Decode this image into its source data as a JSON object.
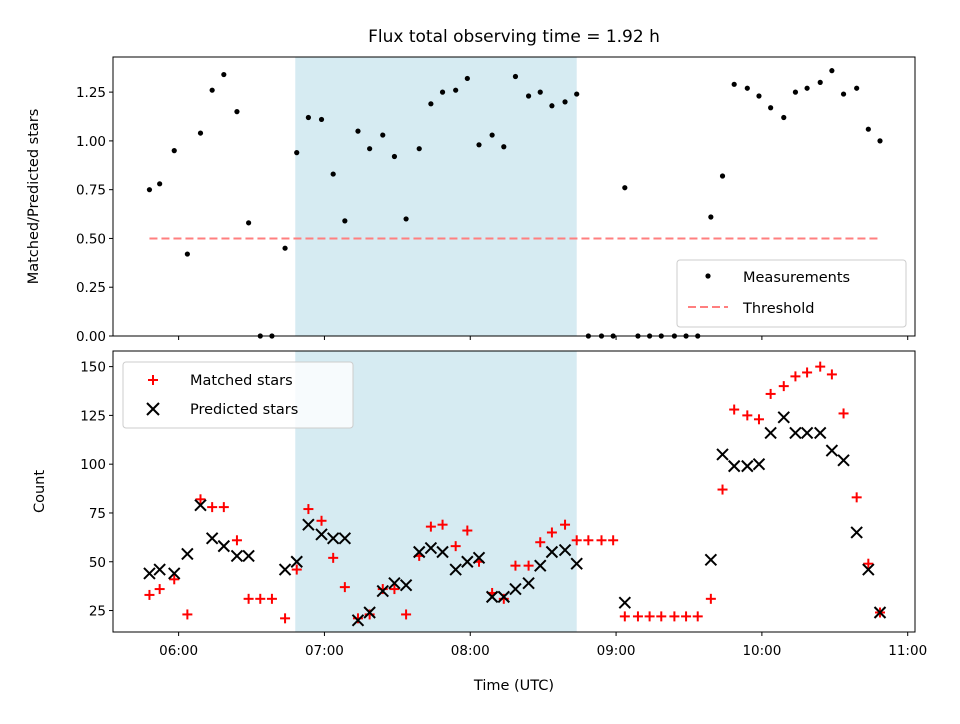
{
  "title": "Flux total observing time = 1.92 h",
  "top": {
    "ylabel": "Matched/Predicted stars",
    "ylim": [
      0,
      1.43
    ],
    "yticks": [
      "0.00",
      "0.25",
      "0.50",
      "0.75",
      "1.00",
      "1.25"
    ],
    "legend": {
      "measurements": "Measurements",
      "threshold": "Threshold"
    }
  },
  "bottom": {
    "ylabel": "Count",
    "xlabel": "Time (UTC)",
    "ylim": [
      14,
      158
    ],
    "yticks": [
      "25",
      "50",
      "75",
      "100",
      "125",
      "150"
    ],
    "legend": {
      "matched": "Matched stars",
      "predicted": "Predicted stars"
    }
  },
  "xticks": [
    "06:00",
    "07:00",
    "08:00",
    "09:00",
    "10:00",
    "11:00"
  ],
  "colors": {
    "shade": "#add8e6",
    "threshold": "#ff7f7f",
    "matched": "#ff0000",
    "predicted": "#000000",
    "measurements": "#000000"
  },
  "chart_data": [
    {
      "type": "scatter",
      "panel": "top",
      "x_unit": "hours UTC",
      "xlim": [
        5.55,
        11.05
      ],
      "shaded_interval": [
        6.8,
        8.73
      ],
      "threshold": {
        "value": 0.5,
        "x_range": [
          5.8,
          10.8
        ]
      },
      "series": [
        {
          "name": "Measurements",
          "x": [
            5.8,
            5.87,
            5.97,
            6.06,
            6.15,
            6.23,
            6.31,
            6.4,
            6.48,
            6.56,
            6.64,
            6.73,
            6.81,
            6.89,
            6.98,
            7.06,
            7.14,
            7.23,
            7.31,
            7.4,
            7.48,
            7.56,
            7.65,
            7.73,
            7.81,
            7.9,
            7.98,
            8.06,
            8.15,
            8.23,
            8.31,
            8.4,
            8.48,
            8.56,
            8.65,
            8.73,
            8.81,
            8.9,
            8.98,
            9.06,
            9.15,
            9.23,
            9.31,
            9.4,
            9.48,
            9.56,
            9.65,
            9.73,
            9.81,
            9.9,
            9.98,
            10.06,
            10.15,
            10.23,
            10.31,
            10.4,
            10.48,
            10.56,
            10.65,
            10.73,
            10.81
          ],
          "y": [
            0.75,
            0.78,
            0.95,
            0.42,
            1.04,
            1.26,
            1.34,
            1.15,
            0.58,
            0.0,
            0.0,
            0.45,
            0.94,
            1.12,
            1.11,
            0.83,
            0.59,
            1.05,
            0.96,
            1.03,
            0.92,
            0.6,
            0.96,
            1.19,
            1.25,
            1.26,
            1.32,
            0.98,
            1.03,
            0.97,
            1.33,
            1.23,
            1.25,
            1.18,
            1.2,
            1.24,
            0.0,
            0.0,
            0.0,
            0.76,
            0.0,
            0.0,
            0.0,
            0.0,
            0.0,
            0.0,
            0.61,
            0.82,
            1.29,
            1.27,
            1.23,
            1.17,
            1.12,
            1.25,
            1.27,
            1.3,
            1.36,
            1.24,
            1.27,
            1.06,
            1.0
          ]
        }
      ]
    },
    {
      "type": "scatter",
      "panel": "bottom",
      "x_unit": "hours UTC",
      "xlim": [
        5.55,
        11.05
      ],
      "shaded_interval": [
        6.8,
        8.73
      ],
      "series": [
        {
          "name": "Matched stars",
          "x": [
            5.8,
            5.87,
            5.97,
            6.06,
            6.15,
            6.23,
            6.31,
            6.4,
            6.48,
            6.56,
            6.64,
            6.73,
            6.81,
            6.89,
            6.98,
            7.06,
            7.14,
            7.23,
            7.31,
            7.4,
            7.48,
            7.56,
            7.65,
            7.73,
            7.81,
            7.9,
            7.98,
            8.06,
            8.15,
            8.23,
            8.31,
            8.4,
            8.48,
            8.56,
            8.65,
            8.73,
            8.81,
            8.9,
            8.98,
            9.06,
            9.15,
            9.23,
            9.31,
            9.4,
            9.48,
            9.56,
            9.65,
            9.73,
            9.81,
            9.9,
            9.98,
            10.06,
            10.15,
            10.23,
            10.31,
            10.4,
            10.48,
            10.56,
            10.65,
            10.73,
            10.81
          ],
          "y": [
            33,
            36,
            41,
            23,
            82,
            78,
            78,
            61,
            31,
            31,
            31,
            21,
            46,
            77,
            71,
            52,
            37,
            21,
            23,
            36,
            36,
            23,
            53,
            68,
            69,
            58,
            66,
            50,
            34,
            31,
            48,
            48,
            60,
            65,
            69,
            61,
            61,
            61,
            61,
            22,
            22,
            22,
            22,
            22,
            22,
            22,
            31,
            87,
            128,
            125,
            123,
            136,
            140,
            145,
            147,
            150,
            146,
            126,
            83,
            49,
            24
          ]
        },
        {
          "name": "Predicted stars",
          "x": [
            5.8,
            5.87,
            5.97,
            6.06,
            6.15,
            6.23,
            6.31,
            6.4,
            6.48,
            6.73,
            6.81,
            6.89,
            6.98,
            7.06,
            7.14,
            7.23,
            7.31,
            7.4,
            7.48,
            7.56,
            7.65,
            7.73,
            7.81,
            7.9,
            7.98,
            8.06,
            8.15,
            8.23,
            8.31,
            8.4,
            8.48,
            8.56,
            8.65,
            8.73,
            9.06,
            9.65,
            9.73,
            9.81,
            9.9,
            9.98,
            10.06,
            10.15,
            10.23,
            10.31,
            10.4,
            10.48,
            10.56,
            10.65,
            10.73,
            10.81
          ],
          "y": [
            44,
            46,
            44,
            54,
            79,
            62,
            58,
            53,
            53,
            46,
            50,
            69,
            64,
            62,
            62,
            20,
            24,
            35,
            39,
            38,
            55,
            57,
            55,
            46,
            50,
            52,
            32,
            32,
            36,
            39,
            48,
            55,
            56,
            49,
            29,
            51,
            105,
            99,
            99,
            100,
            116,
            124,
            116,
            116,
            116,
            107,
            102,
            65,
            46,
            24
          ]
        }
      ]
    }
  ]
}
